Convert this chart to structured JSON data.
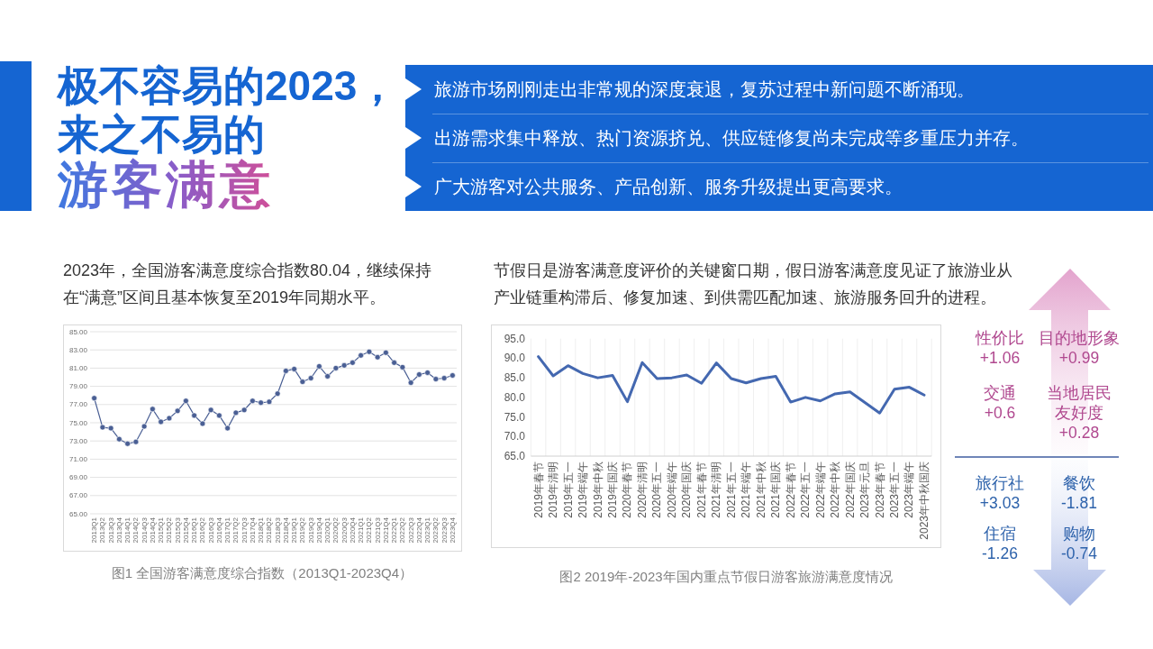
{
  "chart_data": [
    {
      "type": "other",
      "title": "极不容易的2023，来之不易的",
      "subtitle": "游客满意",
      "annotations": [
        "旅游市场刚刚走出非常规的深度衰退，复苏过程中新问题不断涌现。",
        "出游需求集中释放、热门资源挤兑、供应链修复尚未完成等多重压力并存。",
        "广大游客对公共服务、产品创新、服务升级提出更高要求。"
      ]
    },
    {
      "type": "line",
      "subtitle": "2023年，全国游客满意度综合指数80.04，继续保持在“满意”区间且基本恢复至2019年同期水平。",
      "annotations": [
        "图1 全国游客满意度综合指数（2013Q1-2023Q4）"
      ],
      "categories": [
        "2013Q1",
        "2013Q2",
        "2013Q3",
        "2013Q4",
        "2014Q1",
        "2014Q2",
        "2014Q3",
        "2014Q4",
        "2015Q1",
        "2015Q2",
        "2015Q3",
        "2015Q4",
        "2016Q1",
        "2016Q2",
        "2016Q3",
        "2016Q4",
        "2017Q1",
        "2017Q2",
        "2017Q3",
        "2017Q4",
        "2018Q1",
        "2018Q2",
        "2018Q3",
        "2018Q4",
        "2019Q1",
        "2019Q2",
        "2019Q3",
        "2019Q4",
        "2020Q1",
        "2020Q2",
        "2020Q3",
        "2020Q4",
        "2021Q1",
        "2021Q2",
        "2021Q3",
        "2021Q4",
        "2022Q1",
        "2022Q2",
        "2022Q3",
        "2022Q4",
        "2023Q1",
        "2023Q2",
        "2023Q3",
        "2023Q4"
      ],
      "values": [
        77.7,
        74.5,
        74.4,
        73.2,
        72.7,
        72.9,
        74.6,
        76.5,
        75.1,
        75.5,
        76.3,
        77.4,
        75.8,
        74.9,
        76.4,
        75.8,
        74.4,
        76.1,
        76.4,
        77.4,
        77.2,
        77.3,
        78.2,
        80.7,
        80.9,
        79.5,
        79.9,
        81.2,
        80.1,
        81.0,
        81.3,
        81.6,
        82.4,
        82.8,
        82.2,
        82.7,
        81.6,
        81.1,
        79.4,
        80.3,
        80.5,
        79.8,
        79.9,
        80.2
      ],
      "color": "#4a5f94",
      "ylim": [
        65,
        85
      ],
      "yticks": [
        {
          "value": 65,
          "label": "65.00"
        },
        {
          "value": 67,
          "label": "67.00"
        },
        {
          "value": 69,
          "label": "69.00"
        },
        {
          "value": 71,
          "label": "71.00"
        },
        {
          "value": 73,
          "label": "73.00"
        },
        {
          "value": 75,
          "label": "75.00"
        },
        {
          "value": 77,
          "label": "77.00"
        },
        {
          "value": 79,
          "label": "79.00"
        },
        {
          "value": 81,
          "label": "81.00"
        },
        {
          "value": 83,
          "label": "83.00"
        },
        {
          "value": 85,
          "label": "85.00"
        }
      ],
      "grid": "y",
      "marker": "circle"
    },
    {
      "type": "line",
      "subtitle": "节假日是游客满意度评价的关键窗口期，假日游客满意度见证了旅游业从产业链重构滞后、修复加速、到供需匹配加速、旅游服务回升的进程。",
      "annotations": [
        "图2 2019年-2023年国内重点节假日游客旅游满意度情况"
      ],
      "categories": [
        "2019年春节",
        "2019年清明",
        "2019年五一",
        "2019年端午",
        "2019年中秋",
        "2019年国庆",
        "2020年春节",
        "2020年清明",
        "2020年五一",
        "2020年端午",
        "2020年国庆",
        "2021年春节",
        "2021年清明",
        "2021年五一",
        "2021年端午",
        "2021年中秋",
        "2021年国庆",
        "2022年春节",
        "2022年五一",
        "2022年端午",
        "2022年中秋",
        "2022年国庆",
        "2023年元旦",
        "2023年春节",
        "2023年五一",
        "2023年端午",
        "2023年中秋国庆"
      ],
      "values": [
        90.4,
        85.5,
        88.1,
        86.1,
        85.0,
        85.6,
        78.9,
        88.9,
        84.8,
        85.0,
        85.7,
        83.6,
        88.8,
        84.8,
        83.7,
        84.8,
        85.4,
        78.8,
        80.0,
        79.1,
        80.9,
        81.4,
        78.7,
        76.0,
        82.1,
        82.6,
        80.6
      ],
      "color": "#4468b0",
      "ylim": [
        65,
        95
      ],
      "yticks": [
        {
          "value": 65,
          "label": "65.0"
        },
        {
          "value": 70,
          "label": "70.0"
        },
        {
          "value": 75,
          "label": "75.0"
        },
        {
          "value": 80,
          "label": "80.0"
        },
        {
          "value": 85,
          "label": "85.0"
        },
        {
          "value": 90,
          "label": "90.0"
        },
        {
          "value": 95,
          "label": "95.0"
        }
      ],
      "grid": "x"
    },
    {
      "type": "other",
      "categories": [
        "性价比",
        "目的地形象",
        "交通",
        "当地居民友好度",
        "旅行社",
        "餐饮",
        "住宿",
        "购物"
      ],
      "value_labels": [
        "+1.06",
        "+0.99",
        "+0.6",
        "+0.28",
        "+3.03",
        "-1.81",
        "-1.26",
        "-0.74"
      ],
      "colors": [
        "#b0488f",
        "#b0488f",
        "#b0488f",
        "#b0488f",
        "#2d62ab",
        "#2d62ab",
        "#2d62ab",
        "#2d62ab"
      ]
    }
  ]
}
